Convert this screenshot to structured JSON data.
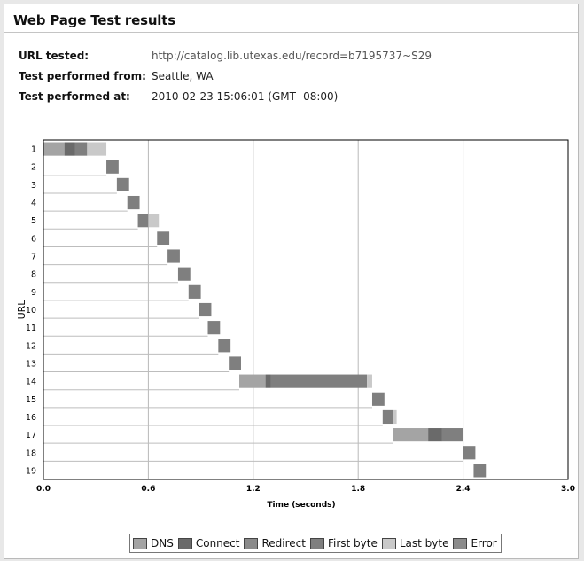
{
  "page": {
    "title": "Web Page Test results"
  },
  "info": [
    {
      "label": "URL tested:",
      "value": "http://catalog.lib.utexas.edu/record=b7195737~S29",
      "value_color": "#555555"
    },
    {
      "label": "Test performed from:",
      "value": "Seattle, WA",
      "value_color": "#222222"
    },
    {
      "label": "Test performed at:",
      "value": "2010-02-23 15:06:01 (GMT -08:00)",
      "value_color": "#222222"
    }
  ],
  "colors": {
    "dns": "#a4a4a4",
    "connect": "#6a6a6a",
    "redirect": "#8a8a8a",
    "first_byte": "#7f7f7f",
    "last_byte": "#c9c9c9",
    "error": "#8c8c8c",
    "grid": "#b8b8b8",
    "axis": "#000000"
  },
  "legend": [
    {
      "key": "dns",
      "label": "DNS"
    },
    {
      "key": "connect",
      "label": "Connect"
    },
    {
      "key": "redirect",
      "label": "Redirect"
    },
    {
      "key": "first_byte",
      "label": "First byte"
    },
    {
      "key": "last_byte",
      "label": "Last byte"
    },
    {
      "key": "error",
      "label": "Error"
    }
  ],
  "chart_data": {
    "type": "bar",
    "orientation": "horizontal waterfall",
    "title": "",
    "xlabel": "Time (seconds)",
    "ylabel": "URL",
    "xlim": [
      0,
      3.0
    ],
    "xticks": [
      "0.0",
      "0.6",
      "1.2",
      "1.8",
      "2.4",
      "3.0"
    ],
    "xtick_values": [
      0,
      0.6,
      1.2,
      1.8,
      2.4,
      3.0
    ],
    "grid": "vertical lines",
    "legend_position": "bottom",
    "rows": [
      {
        "url": "1",
        "segments": [
          {
            "phase": "dns",
            "start": 0.0,
            "end": 0.12
          },
          {
            "phase": "connect",
            "start": 0.12,
            "end": 0.18
          },
          {
            "phase": "first_byte",
            "start": 0.18,
            "end": 0.25
          },
          {
            "phase": "last_byte",
            "start": 0.25,
            "end": 0.36
          }
        ]
      },
      {
        "url": "2",
        "segments": [
          {
            "phase": "first_byte",
            "start": 0.36,
            "end": 0.43
          }
        ]
      },
      {
        "url": "3",
        "segments": [
          {
            "phase": "first_byte",
            "start": 0.42,
            "end": 0.49
          }
        ]
      },
      {
        "url": "4",
        "segments": [
          {
            "phase": "first_byte",
            "start": 0.48,
            "end": 0.55
          }
        ]
      },
      {
        "url": "5",
        "segments": [
          {
            "phase": "first_byte",
            "start": 0.54,
            "end": 0.6
          },
          {
            "phase": "last_byte",
            "start": 0.6,
            "end": 0.66
          }
        ]
      },
      {
        "url": "6",
        "segments": [
          {
            "phase": "first_byte",
            "start": 0.65,
            "end": 0.72
          }
        ]
      },
      {
        "url": "7",
        "segments": [
          {
            "phase": "first_byte",
            "start": 0.71,
            "end": 0.78
          }
        ]
      },
      {
        "url": "8",
        "segments": [
          {
            "phase": "first_byte",
            "start": 0.77,
            "end": 0.84
          }
        ]
      },
      {
        "url": "9",
        "segments": [
          {
            "phase": "first_byte",
            "start": 0.83,
            "end": 0.9
          }
        ]
      },
      {
        "url": "10",
        "segments": [
          {
            "phase": "first_byte",
            "start": 0.89,
            "end": 0.96
          }
        ]
      },
      {
        "url": "11",
        "segments": [
          {
            "phase": "first_byte",
            "start": 0.94,
            "end": 1.01
          }
        ]
      },
      {
        "url": "12",
        "segments": [
          {
            "phase": "first_byte",
            "start": 1.0,
            "end": 1.07
          }
        ]
      },
      {
        "url": "13",
        "segments": [
          {
            "phase": "first_byte",
            "start": 1.06,
            "end": 1.13
          }
        ]
      },
      {
        "url": "14",
        "segments": [
          {
            "phase": "dns",
            "start": 1.12,
            "end": 1.27
          },
          {
            "phase": "connect",
            "start": 1.27,
            "end": 1.3
          },
          {
            "phase": "first_byte",
            "start": 1.3,
            "end": 1.85
          },
          {
            "phase": "last_byte",
            "start": 1.85,
            "end": 1.88
          }
        ]
      },
      {
        "url": "15",
        "segments": [
          {
            "phase": "first_byte",
            "start": 1.88,
            "end": 1.95
          }
        ]
      },
      {
        "url": "16",
        "segments": [
          {
            "phase": "first_byte",
            "start": 1.94,
            "end": 2.0
          },
          {
            "phase": "last_byte",
            "start": 2.0,
            "end": 2.02
          }
        ]
      },
      {
        "url": "17",
        "segments": [
          {
            "phase": "dns",
            "start": 2.0,
            "end": 2.2
          },
          {
            "phase": "connect",
            "start": 2.2,
            "end": 2.28
          },
          {
            "phase": "first_byte",
            "start": 2.28,
            "end": 2.4
          }
        ]
      },
      {
        "url": "18",
        "segments": [
          {
            "phase": "first_byte",
            "start": 2.4,
            "end": 2.47
          }
        ]
      },
      {
        "url": "19",
        "segments": [
          {
            "phase": "first_byte",
            "start": 2.46,
            "end": 2.53
          }
        ]
      }
    ]
  }
}
